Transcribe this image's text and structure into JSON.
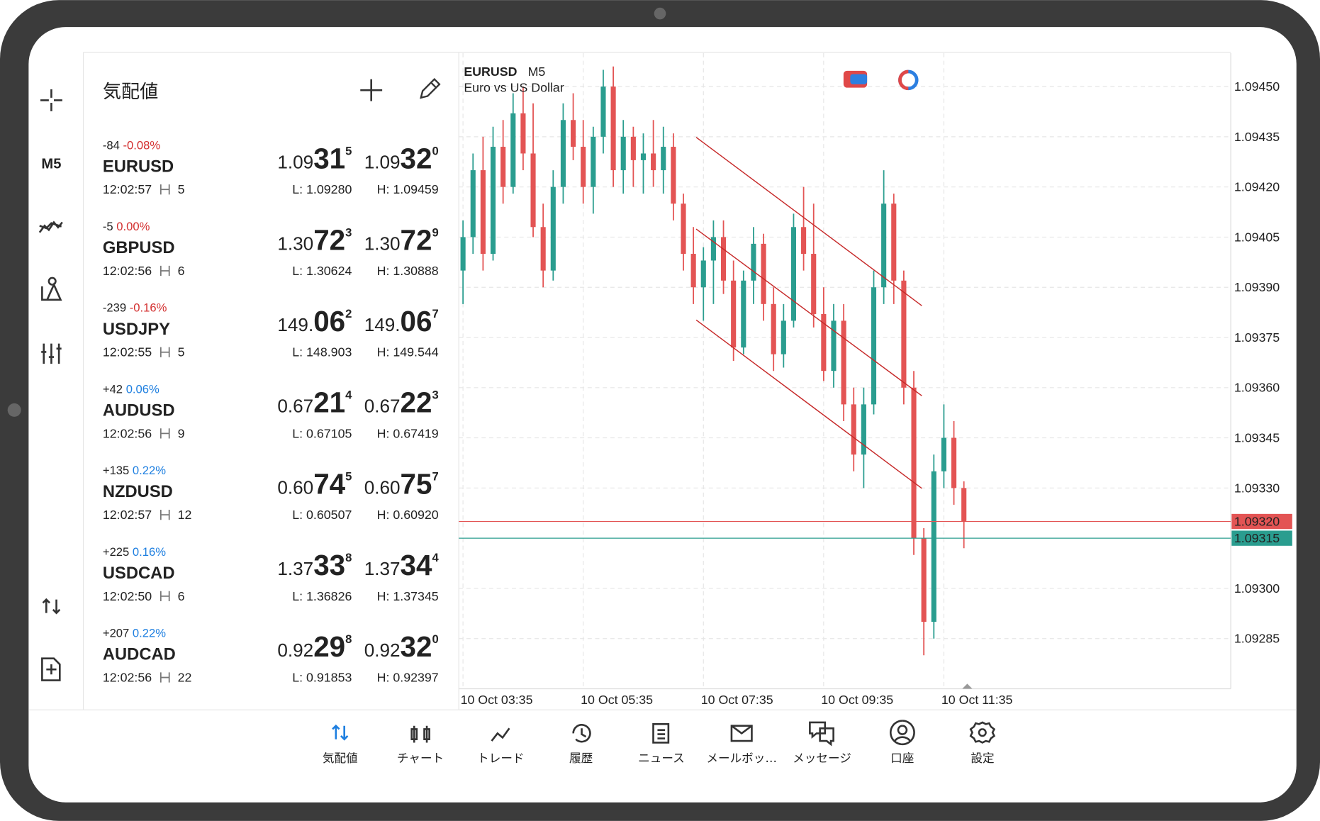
{
  "watchlist": {
    "title": "気配値",
    "rows": [
      {
        "change": "-84",
        "percent": "-0.08%",
        "percent_color": "#d32f2f",
        "symbol": "EURUSD",
        "time": "12:02:57",
        "spread": "5",
        "bid": [
          "1.09",
          "31",
          "5"
        ],
        "ask": [
          "1.09",
          "32",
          "0"
        ],
        "bid_color": "#1e7fe0",
        "ask_color": "#1e7fe0",
        "low": "L: 1.09280",
        "high": "H: 1.09459"
      },
      {
        "change": "-5",
        "percent": "0.00%",
        "percent_color": "#d32f2f",
        "symbol": "GBPUSD",
        "time": "12:02:56",
        "spread": "6",
        "bid": [
          "1.30",
          "72",
          "3"
        ],
        "ask": [
          "1.30",
          "72",
          "9"
        ],
        "bid_color": "#1e7fe0",
        "ask_color": "#1e7fe0",
        "low": "L: 1.30624",
        "high": "H: 1.30888"
      },
      {
        "change": "-239",
        "percent": "-0.16%",
        "percent_color": "#d32f2f",
        "symbol": "USDJPY",
        "time": "12:02:55",
        "spread": "5",
        "bid": [
          "149.",
          "06",
          "2"
        ],
        "ask": [
          "149.",
          "06",
          "7"
        ],
        "bid_color": "#d32f2f",
        "ask_color": "#d32f2f",
        "low": "L: 148.903",
        "high": "H: 149.544"
      },
      {
        "change": "+42",
        "percent": "0.06%",
        "percent_color": "#1e7fe0",
        "symbol": "AUDUSD",
        "time": "12:02:56",
        "spread": "9",
        "bid": [
          "0.67",
          "21",
          "4"
        ],
        "ask": [
          "0.67",
          "22",
          "3"
        ],
        "bid_color": "#1e7fe0",
        "ask_color": "#1e7fe0",
        "low": "L: 0.67105",
        "high": "H: 0.67419"
      },
      {
        "change": "+135",
        "percent": "0.22%",
        "percent_color": "#1e7fe0",
        "symbol": "NZDUSD",
        "time": "12:02:57",
        "spread": "12",
        "bid": [
          "0.60",
          "74",
          "5"
        ],
        "ask": [
          "0.60",
          "75",
          "7"
        ],
        "bid_color": "#1e7fe0",
        "ask_color": "#1e7fe0",
        "low": "L: 0.60507",
        "high": "H: 0.60920"
      },
      {
        "change": "+225",
        "percent": "0.16%",
        "percent_color": "#1e7fe0",
        "symbol": "USDCAD",
        "time": "12:02:50",
        "spread": "6",
        "bid": [
          "1.37",
          "33",
          "8"
        ],
        "ask": [
          "1.37",
          "34",
          "4"
        ],
        "bid_color": "#1e7fe0",
        "ask_color": "#d32f2f",
        "low": "L: 1.36826",
        "high": "H: 1.37345"
      },
      {
        "change": "+207",
        "percent": "0.22%",
        "percent_color": "#1e7fe0",
        "symbol": "AUDCAD",
        "time": "12:02:56",
        "spread": "22",
        "bid": [
          "0.92",
          "29",
          "8"
        ],
        "ask": [
          "0.92",
          "32",
          "0"
        ],
        "bid_color": "#1e7fe0",
        "ask_color": "#1e7fe0",
        "low": "L: 0.91853",
        "high": "H: 0.92397"
      }
    ]
  },
  "sidebar": {
    "timeframe": "M5"
  },
  "nav": {
    "items": [
      "気配値",
      "チャート",
      "トレード",
      "履歴",
      "ニュース",
      "メールボッ…",
      "メッセージ",
      "口座",
      "設定"
    ]
  },
  "chart_data": {
    "type": "candlestick",
    "symbol": "EURUSD",
    "timeframe": "M5",
    "subtitle": "Euro vs US Dollar",
    "up_color": "#2a9d8f",
    "down_color": "#e35454",
    "ylim": [
      1.0927,
      1.0946
    ],
    "yticks": [
      {
        "value": 1.0945,
        "label": "1.09450"
      },
      {
        "value": 1.09435,
        "label": "1.09435"
      },
      {
        "value": 1.0942,
        "label": "1.09420"
      },
      {
        "value": 1.09405,
        "label": "1.09405"
      },
      {
        "value": 1.0939,
        "label": "1.09390"
      },
      {
        "value": 1.09375,
        "label": "1.09375"
      },
      {
        "value": 1.0936,
        "label": "1.09360"
      },
      {
        "value": 1.09345,
        "label": "1.09345"
      },
      {
        "value": 1.0933,
        "label": "1.09330"
      },
      {
        "value": 1.093,
        "label": "1.09300"
      },
      {
        "value": 1.09285,
        "label": "1.09285"
      }
    ],
    "xticks": [
      {
        "value": 0,
        "label": "10 Oct 03:35"
      },
      {
        "value": 12,
        "label": "10 Oct 05:35"
      },
      {
        "value": 24,
        "label": "10 Oct 07:35"
      },
      {
        "value": 36,
        "label": "10 Oct 09:35"
      },
      {
        "value": 48,
        "label": "10 Oct 11:35"
      }
    ],
    "price_lines": [
      {
        "value": 1.0932,
        "label": "1.09320",
        "color": "#e35454"
      },
      {
        "value": 1.09315,
        "label": "1.09315",
        "color": "#2a9d8f"
      }
    ],
    "open": [
      1.09395,
      1.09405,
      1.09425,
      1.094,
      1.09432,
      1.0942,
      1.09442,
      1.0943,
      1.09408,
      1.09395,
      1.0942,
      1.0944,
      1.09432,
      1.0942,
      1.09435,
      1.0945,
      1.09425,
      1.09435,
      1.09428,
      1.0943,
      1.09425,
      1.09432,
      1.09415,
      1.094,
      1.0939,
      1.09398,
      1.09405,
      1.09392,
      1.09372,
      1.09392,
      1.09403,
      1.09385,
      1.0937,
      1.0938,
      1.09408,
      1.094,
      1.09382,
      1.09365,
      1.0938,
      1.09355,
      1.0934,
      1.09355,
      1.0939,
      1.09415,
      1.09392,
      1.0936,
      1.09315,
      1.0929,
      1.09335,
      1.09345,
      1.0933
    ],
    "high": [
      1.0941,
      1.0943,
      1.09435,
      1.09438,
      1.0944,
      1.09448,
      1.0945,
      1.09445,
      1.09415,
      1.09425,
      1.09445,
      1.09448,
      1.0944,
      1.09438,
      1.09455,
      1.09456,
      1.0944,
      1.09438,
      1.09436,
      1.0944,
      1.09438,
      1.09436,
      1.09418,
      1.09408,
      1.09402,
      1.0941,
      1.0941,
      1.09398,
      1.09395,
      1.09408,
      1.09406,
      1.0939,
      1.09385,
      1.09412,
      1.0942,
      1.09415,
      1.0939,
      1.09385,
      1.09385,
      1.0936,
      1.0936,
      1.09395,
      1.09425,
      1.09418,
      1.09395,
      1.09365,
      1.09318,
      1.0934,
      1.09355,
      1.0935,
      1.09332
    ],
    "low": [
      1.09385,
      1.094,
      1.09395,
      1.09398,
      1.09415,
      1.09418,
      1.09425,
      1.09405,
      1.0939,
      1.09392,
      1.09415,
      1.09428,
      1.09415,
      1.09412,
      1.0943,
      1.0942,
      1.09418,
      1.0942,
      1.09418,
      1.0942,
      1.09418,
      1.0941,
      1.09395,
      1.09385,
      1.0938,
      1.09385,
      1.09388,
      1.09368,
      1.0937,
      1.09385,
      1.0938,
      1.09365,
      1.09366,
      1.09378,
      1.09395,
      1.09378,
      1.09362,
      1.0936,
      1.0935,
      1.09335,
      1.0933,
      1.09352,
      1.09385,
      1.09385,
      1.09355,
      1.0931,
      1.0928,
      1.09285,
      1.0933,
      1.09325,
      1.09312
    ],
    "close": [
      1.09405,
      1.09425,
      1.094,
      1.09432,
      1.0942,
      1.09442,
      1.0943,
      1.09408,
      1.09395,
      1.0942,
      1.0944,
      1.09432,
      1.0942,
      1.09435,
      1.0945,
      1.09425,
      1.09435,
      1.09428,
      1.0943,
      1.09425,
      1.09432,
      1.09415,
      1.094,
      1.0939,
      1.09398,
      1.09405,
      1.09392,
      1.09372,
      1.09392,
      1.09403,
      1.09385,
      1.0937,
      1.0938,
      1.09408,
      1.094,
      1.09382,
      1.09365,
      1.0938,
      1.09355,
      1.0934,
      1.09355,
      1.0939,
      1.09415,
      1.09392,
      1.0936,
      1.09315,
      1.0929,
      1.09335,
      1.09345,
      1.0933,
      1.0932
    ]
  }
}
